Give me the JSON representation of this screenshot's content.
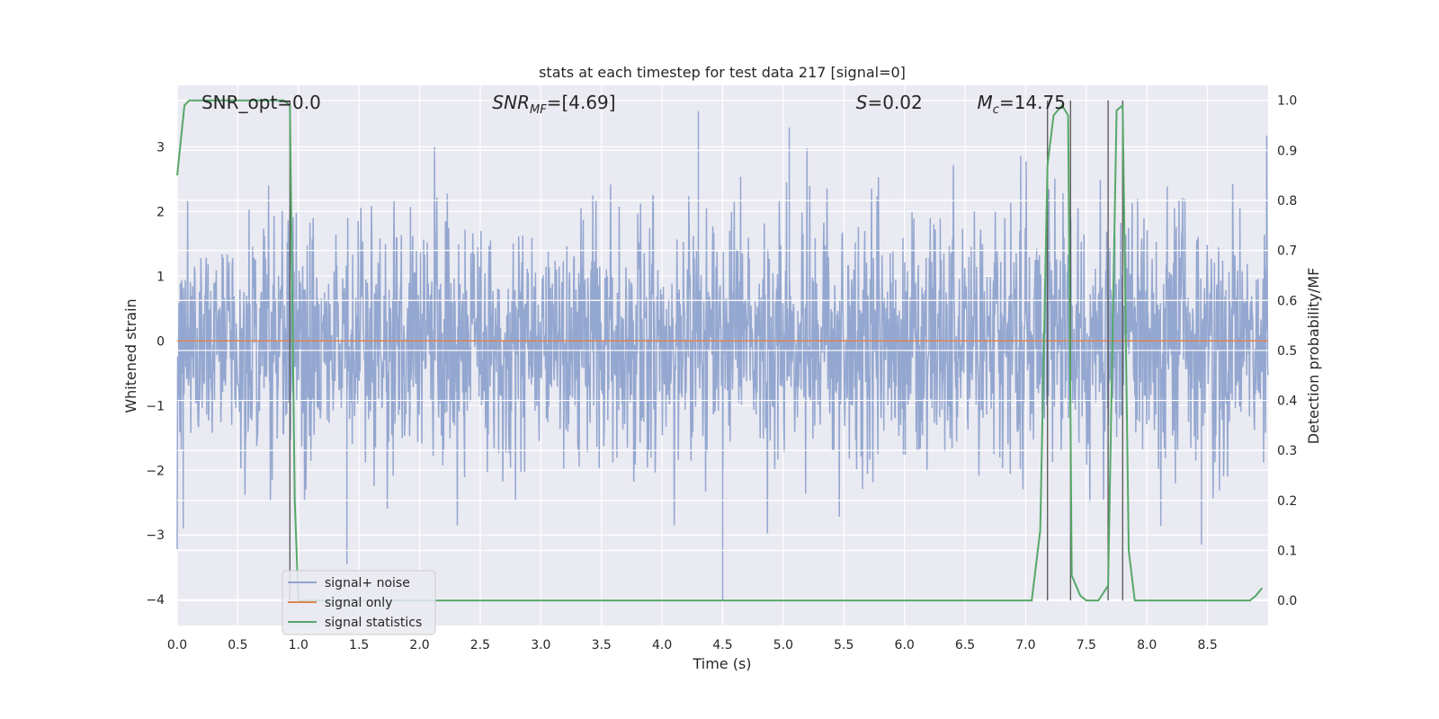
{
  "chart_data": {
    "type": "line",
    "title": "stats at each timestep for test data 217 [signal=0]",
    "xlabel": "Time (s)",
    "ylabel": "Whitened strain",
    "y2label": "Detection probability/MF",
    "xlim": [
      0.0,
      9.0
    ],
    "ylim": [
      -4.4,
      3.95
    ],
    "y2lim": [
      -0.05,
      1.03
    ],
    "xticks": [
      "0.0",
      "0.5",
      "1.0",
      "1.5",
      "2.0",
      "2.5",
      "3.0",
      "3.5",
      "4.0",
      "4.5",
      "5.0",
      "5.5",
      "6.0",
      "6.5",
      "7.0",
      "7.5",
      "8.0",
      "8.5"
    ],
    "yticks": [
      "3",
      "2",
      "1",
      "0",
      "−1",
      "−2",
      "−3",
      "−4"
    ],
    "y2ticks": [
      "1.0",
      "0.9",
      "0.8",
      "0.7",
      "0.6",
      "0.5",
      "0.4",
      "0.3",
      "0.2",
      "0.1",
      "0.0"
    ],
    "grid": true,
    "legend_position": "lower-left",
    "annotations": [
      {
        "name": "snr-opt",
        "text": "SNR_opt=0.0",
        "x": 0.2
      },
      {
        "name": "snr-mf",
        "text": "SNR",
        "sub": "MF",
        "suffix": "=[4.69]",
        "x": 2.6,
        "italic": true
      },
      {
        "name": "s-value",
        "text": "S",
        "suffix": "=0.02",
        "x": 5.6,
        "italic": true
      },
      {
        "name": "mc-value",
        "text": "M",
        "sub": "c",
        "suffix": "=14.75",
        "x": 6.6,
        "italic": true
      }
    ],
    "series": [
      {
        "name": "signal+ noise",
        "color": "#8fa3ce",
        "axis": "left",
        "kind": "noise",
        "amplitude": 1.3,
        "peak_max": 3.6,
        "peak_min": -4.0
      },
      {
        "name": "signal only",
        "color": "#dd8452",
        "axis": "left",
        "x": [
          0,
          9
        ],
        "y": [
          0,
          0
        ]
      },
      {
        "name": "signal statistics",
        "color": "#55a868",
        "axis": "right",
        "x": [
          0.0,
          0.06,
          0.1,
          0.2,
          0.3,
          0.4,
          0.5,
          0.6,
          0.7,
          0.8,
          0.85,
          0.88,
          0.93,
          0.97,
          1.0,
          1.5,
          2.0,
          3.0,
          4.0,
          5.0,
          6.0,
          7.0,
          7.05,
          7.12,
          7.18,
          7.23,
          7.3,
          7.35,
          7.38,
          7.45,
          7.5,
          7.6,
          7.68,
          7.75,
          7.8,
          7.85,
          7.9,
          8.0,
          8.5,
          8.85,
          8.9,
          8.95
        ],
        "y": [
          0.85,
          0.99,
          1.0,
          1.0,
          1.0,
          1.0,
          1.0,
          1.0,
          1.0,
          1.0,
          1.0,
          1.0,
          0.99,
          0.2,
          0.0,
          0.0,
          0.0,
          0.0,
          0.0,
          0.0,
          0.0,
          0.0,
          0.0,
          0.14,
          0.87,
          0.97,
          0.99,
          0.97,
          0.05,
          0.01,
          0.0,
          0.0,
          0.03,
          0.98,
          0.99,
          0.1,
          0.0,
          0.0,
          0.0,
          0.0,
          0.01,
          0.025
        ]
      }
    ],
    "vertical_lines": [
      0.93,
      7.18,
      7.37,
      7.68,
      7.8
    ]
  }
}
